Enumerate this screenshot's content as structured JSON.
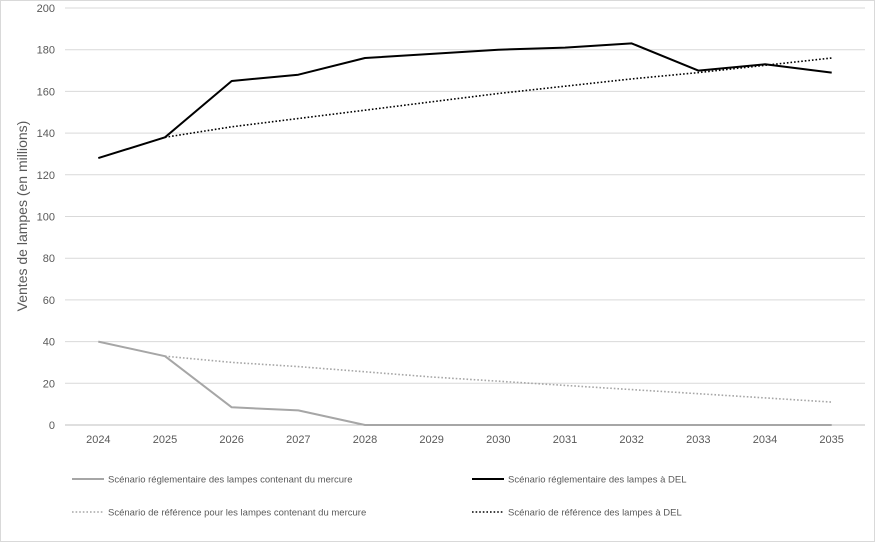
{
  "chart_data": {
    "type": "line",
    "title": "",
    "xlabel": "",
    "ylabel": "Ventes de lampes (en millions)",
    "ylim": [
      0,
      200
    ],
    "yticks": [
      0,
      20,
      40,
      60,
      80,
      100,
      120,
      140,
      160,
      180,
      200
    ],
    "grid": true,
    "legend_position": "bottom",
    "x": [
      2024,
      2025,
      2026,
      2027,
      2028,
      2029,
      2030,
      2031,
      2032,
      2033,
      2034,
      2035
    ],
    "series": [
      {
        "name": "Scénario réglementaire des lampes contenant du mercure",
        "color": "#a6a6a6",
        "style": "solid",
        "values": [
          40,
          33,
          8.5,
          7,
          0,
          0,
          0,
          0,
          0,
          0,
          0,
          0
        ]
      },
      {
        "name": "Scénario réglementaire des lampes à DEL",
        "color": "#000000",
        "style": "solid",
        "values": [
          128,
          138,
          165,
          168,
          176,
          178,
          180,
          181,
          183,
          170,
          173,
          169
        ]
      },
      {
        "name": "Scénario de référence pour les lampes contenant du mercure",
        "color": "#a6a6a6",
        "style": "dotted",
        "values": [
          null,
          33,
          30,
          28,
          25.5,
          23,
          21,
          19,
          17,
          15,
          13,
          11
        ]
      },
      {
        "name": "Scénario de référence des lampes à DEL",
        "color": "#000000",
        "style": "dotted",
        "values": [
          null,
          138,
          143,
          147,
          151,
          155,
          159,
          162.5,
          166,
          169,
          172.5,
          176
        ]
      }
    ]
  }
}
